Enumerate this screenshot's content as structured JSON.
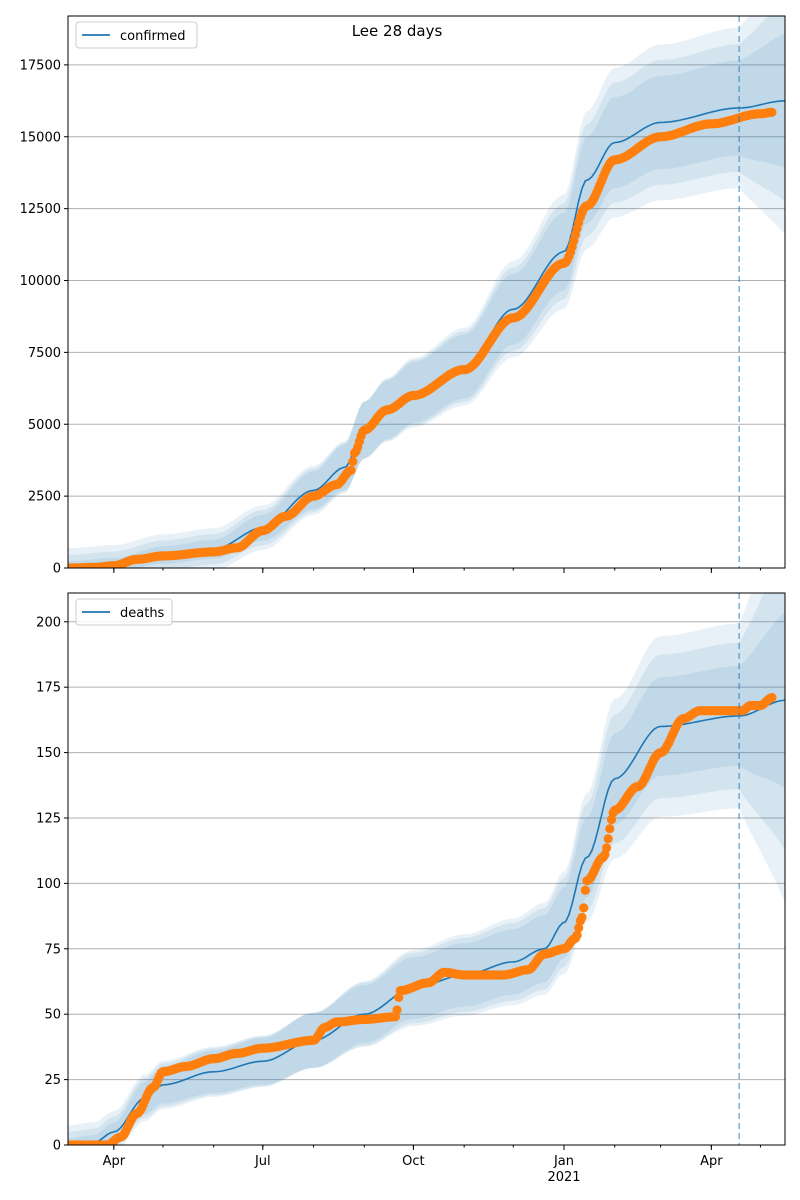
{
  "title": "Lee 28 days",
  "chart_data": [
    {
      "type": "line",
      "legend": "confirmed",
      "legend_placement": "top-left",
      "grid": "horizontal",
      "x_ticks": [
        "Apr",
        "Jul",
        "Oct",
        "Jan",
        "Apr"
      ],
      "x_tick_dates": [
        "2020-04-01",
        "2020-07-01",
        "2020-10-01",
        "2021-01-01",
        "2021-04-01"
      ],
      "x_year_label": "2021",
      "xlim": [
        "2020-03-04",
        "2021-05-16"
      ],
      "ylim": [
        0,
        19200
      ],
      "y_ticks": [
        0,
        2500,
        5000,
        7500,
        10000,
        12500,
        15000,
        17500
      ],
      "forecast_start": "2021-04-18",
      "model_knots": [
        [
          "2020-03-04",
          0
        ],
        [
          "2020-04-01",
          100
        ],
        [
          "2020-05-01",
          450
        ],
        [
          "2020-06-01",
          650
        ],
        [
          "2020-07-01",
          1400
        ],
        [
          "2020-08-01",
          2700
        ],
        [
          "2020-08-20",
          3500
        ],
        [
          "2020-09-01",
          4800
        ],
        [
          "2020-09-15",
          5500
        ],
        [
          "2020-10-01",
          6100
        ],
        [
          "2020-11-01",
          7000
        ],
        [
          "2020-12-01",
          9000
        ],
        [
          "2021-01-01",
          11000
        ],
        [
          "2021-01-15",
          13500
        ],
        [
          "2021-02-01",
          14800
        ],
        [
          "2021-03-01",
          15500
        ],
        [
          "2021-04-18",
          16000
        ],
        [
          "2021-05-16",
          16250
        ]
      ],
      "observed_knots": [
        [
          "2020-03-04",
          0
        ],
        [
          "2020-03-20",
          20
        ],
        [
          "2020-04-01",
          80
        ],
        [
          "2020-04-15",
          300
        ],
        [
          "2020-05-01",
          420
        ],
        [
          "2020-06-01",
          560
        ],
        [
          "2020-06-15",
          700
        ],
        [
          "2020-07-01",
          1300
        ],
        [
          "2020-07-15",
          1800
        ],
        [
          "2020-08-01",
          2500
        ],
        [
          "2020-08-15",
          2900
        ],
        [
          "2020-08-24",
          3400
        ],
        [
          "2020-08-26",
          4000
        ],
        [
          "2020-09-01",
          4800
        ],
        [
          "2020-09-15",
          5500
        ],
        [
          "2020-10-01",
          6000
        ],
        [
          "2020-11-01",
          6900
        ],
        [
          "2020-12-01",
          8700
        ],
        [
          "2021-01-01",
          10600
        ],
        [
          "2021-01-15",
          12600
        ],
        [
          "2021-02-01",
          14200
        ],
        [
          "2021-03-01",
          15000
        ],
        [
          "2021-04-01",
          15450
        ],
        [
          "2021-05-01",
          15800
        ],
        [
          "2021-05-08",
          15850
        ]
      ],
      "band_rel_widths": [
        0.06,
        0.11,
        0.16
      ],
      "band_forecast_growth": 0.7
    },
    {
      "type": "line",
      "legend": "deaths",
      "legend_placement": "top-left",
      "grid": "horizontal",
      "x_ticks": [
        "Apr",
        "Jul",
        "Oct",
        "Jan",
        "Apr"
      ],
      "x_tick_dates": [
        "2020-04-01",
        "2020-07-01",
        "2020-10-01",
        "2021-01-01",
        "2021-04-01"
      ],
      "x_year_label": "2021",
      "xlim": [
        "2020-03-04",
        "2021-05-16"
      ],
      "ylim": [
        0,
        211
      ],
      "y_ticks": [
        0,
        25,
        50,
        75,
        100,
        125,
        150,
        175,
        200
      ],
      "forecast_start": "2021-04-18",
      "model_knots": [
        [
          "2020-03-04",
          0
        ],
        [
          "2020-03-20",
          1
        ],
        [
          "2020-04-01",
          5
        ],
        [
          "2020-04-20",
          18
        ],
        [
          "2020-05-01",
          23
        ],
        [
          "2020-06-01",
          28
        ],
        [
          "2020-07-01",
          32
        ],
        [
          "2020-08-01",
          40
        ],
        [
          "2020-09-01",
          50
        ],
        [
          "2020-10-01",
          60
        ],
        [
          "2020-11-01",
          65
        ],
        [
          "2020-12-01",
          70
        ],
        [
          "2020-12-20",
          75
        ],
        [
          "2021-01-01",
          85
        ],
        [
          "2021-01-15",
          110
        ],
        [
          "2021-02-01",
          140
        ],
        [
          "2021-03-01",
          160
        ],
        [
          "2021-04-18",
          164
        ],
        [
          "2021-05-16",
          170
        ]
      ],
      "observed_knots": [
        [
          "2020-03-04",
          0
        ],
        [
          "2020-03-28",
          0
        ],
        [
          "2020-04-05",
          3
        ],
        [
          "2020-04-15",
          12
        ],
        [
          "2020-04-25",
          22
        ],
        [
          "2020-05-01",
          28
        ],
        [
          "2020-05-15",
          30
        ],
        [
          "2020-06-01",
          33
        ],
        [
          "2020-06-15",
          35
        ],
        [
          "2020-07-01",
          37
        ],
        [
          "2020-08-01",
          40
        ],
        [
          "2020-08-08",
          45
        ],
        [
          "2020-08-15",
          47
        ],
        [
          "2020-09-01",
          48
        ],
        [
          "2020-09-20",
          49
        ],
        [
          "2020-09-23",
          59
        ],
        [
          "2020-10-10",
          62
        ],
        [
          "2020-10-20",
          66
        ],
        [
          "2020-11-01",
          65
        ],
        [
          "2020-11-25",
          65
        ],
        [
          "2020-12-10",
          67
        ],
        [
          "2020-12-20",
          73
        ],
        [
          "2021-01-01",
          75
        ],
        [
          "2021-01-08",
          79
        ],
        [
          "2021-01-12",
          87
        ],
        [
          "2021-01-15",
          101
        ],
        [
          "2021-01-25",
          110
        ],
        [
          "2021-02-01",
          128
        ],
        [
          "2021-02-15",
          137
        ],
        [
          "2021-03-01",
          150
        ],
        [
          "2021-03-15",
          163
        ],
        [
          "2021-03-25",
          166
        ],
        [
          "2021-04-20",
          166
        ],
        [
          "2021-04-25",
          168
        ],
        [
          "2021-05-01",
          168
        ],
        [
          "2021-05-08",
          171
        ]
      ],
      "band_rel_widths": [
        0.07,
        0.14,
        0.2
      ],
      "band_forecast_growth": 1.2
    }
  ],
  "colors": {
    "model_line": "#1f77b4",
    "band": "#1f77b4",
    "band_opacity": 0.1,
    "observed": "#ff7f0e",
    "grid": "#b0b0b0",
    "forecast_line": "#1f77b4"
  }
}
